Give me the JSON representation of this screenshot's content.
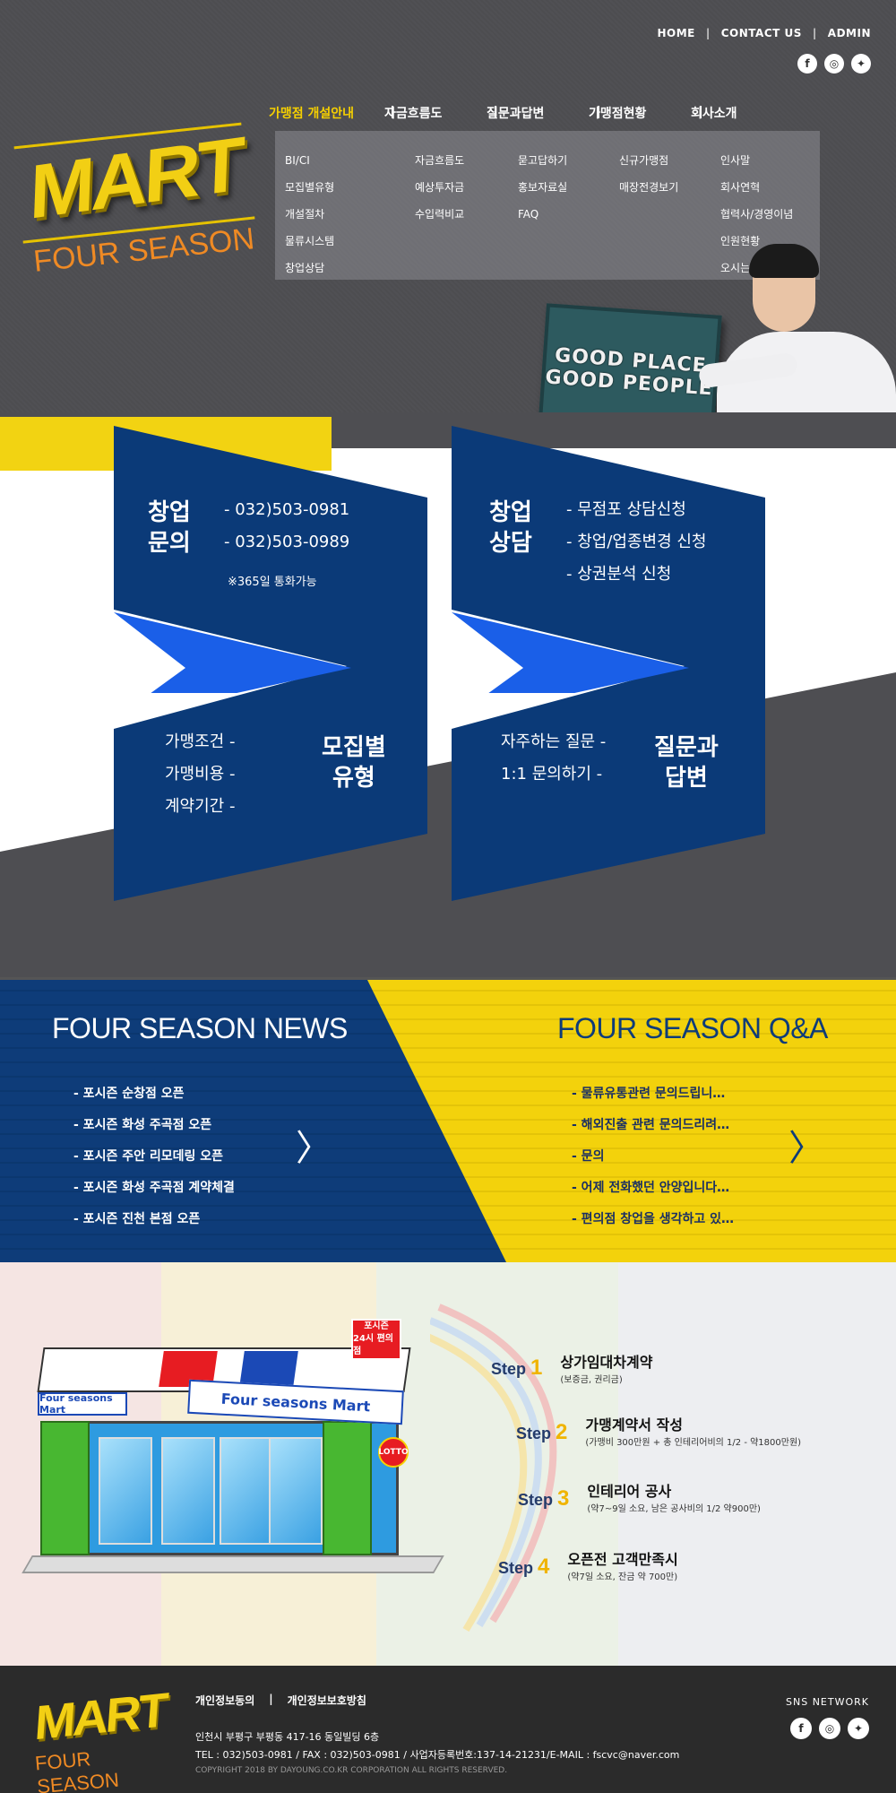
{
  "topnav": {
    "home": "HOME",
    "contact": "CONTACT US",
    "admin": "ADMIN",
    "sep": "|"
  },
  "social_icons": [
    "facebook-icon",
    "instagram-icon",
    "twitter-icon"
  ],
  "logo": {
    "mart": "MART",
    "season": "FOUR SEASON"
  },
  "mainnav": {
    "items": [
      {
        "label": "가맹점 개설안내",
        "active": true
      },
      {
        "label": "자금흐름도"
      },
      {
        "label": "질문과답변"
      },
      {
        "label": "가맹점현황"
      },
      {
        "label": "회사소개"
      }
    ],
    "sep": "|"
  },
  "submenu": {
    "col1": [
      "BI/CI",
      "모집별유형",
      "개설절차",
      "물류시스템",
      "창업상담"
    ],
    "col2": [
      "자금흐름도",
      "예상투자금",
      "수입력비교"
    ],
    "col3": [
      "묻고답하기",
      "홍보자료실",
      "FAQ"
    ],
    "col4": [
      "신규가맹점",
      "매장전경보기"
    ],
    "col5": [
      "인사말",
      "회사연혁",
      "협력사/경영이념",
      "인원현황",
      "오시는길"
    ]
  },
  "banner": {
    "line1": "GOOD PLACE",
    "line2": "GOOD PEOPLE"
  },
  "card1": {
    "title1": "창업",
    "title2": "문의",
    "phone1": "- 032)503-0981",
    "phone2": "- 032)503-0989",
    "note": "※365일 통화가능",
    "bottom_lines": [
      "가맹조건 -",
      "가맹비용 -",
      "계약기간 -"
    ],
    "bottom_title1": "모집별",
    "bottom_title2": "유형"
  },
  "card2": {
    "title1": "창업",
    "title2": "상담",
    "lines": [
      "- 무점포 상담신청",
      "- 창업/업종변경 신청",
      "- 상권분석 신청"
    ],
    "bottom_lines": [
      "자주하는 질문 -",
      "1:1 문의하기 -"
    ],
    "bottom_title1": "질문과",
    "bottom_title2": "답변"
  },
  "news": {
    "title": "FOUR SEASON NEWS",
    "items": [
      "- 포시즌 순창점 오픈",
      "- 포시즌 화성 주곡점 오픈",
      "- 포시즌 주안 리모데링 오픈",
      "- 포시즌 화성 주곡점 계약체결",
      "- 포시즌 진천 본점 오픈"
    ],
    "arrow": "〉"
  },
  "qa": {
    "title": "FOUR SEASON Q&A",
    "items": [
      "- 물류유통관련 문의드립니…",
      "- 해외진출 관련 문의드리려…",
      "- 문의",
      "- 어제 전화했던 안양입니다…",
      "- 편의점 창업을 생각하고 있…"
    ],
    "arrow": "〉"
  },
  "store": {
    "sign_main": "Four seasons Mart",
    "sign_small": "Four seasons Mart",
    "top_sign1": "포시즌",
    "top_sign2": "24시 편의점",
    "lotto": "LOTTO"
  },
  "steps": [
    {
      "label": "Step",
      "num": "1",
      "title": "상가임대차계약",
      "sub": "(보증금, 권리금)"
    },
    {
      "label": "Step",
      "num": "2",
      "title": "가맹계약서 작성",
      "sub": "(가맹비 300만원 + 총 인테리어비의 1/2 - 약1800만원)"
    },
    {
      "label": "Step",
      "num": "3",
      "title": "인테리어 공사",
      "sub": "(약7~9일 소요, 남은 공사비의 1/2 약900만)"
    },
    {
      "label": "Step",
      "num": "4",
      "title": "오픈전 고객만족시",
      "sub": "(약7일 소요, 잔금 약 700만)"
    }
  ],
  "footer": {
    "mart": "MART",
    "season": "FOUR SEASON",
    "link1": "개인정보동의",
    "link_sep": "|",
    "link2": "개인정보보호방침",
    "address": "인천시 부평구 부평동 417-16 동일빌딩 6층",
    "contact": "TEL : 032)503-0981 / FAX : 032)503-0981 / 사업자등록번호:137-14-21231/E-MAIL : fscvc@naver.com",
    "copyright": "COPYRIGHT 2018 BY DAYOUNG.CO.KR CORPORATION ALL RIGHTS RESERVED.",
    "sns": "SNS NETWORK"
  }
}
